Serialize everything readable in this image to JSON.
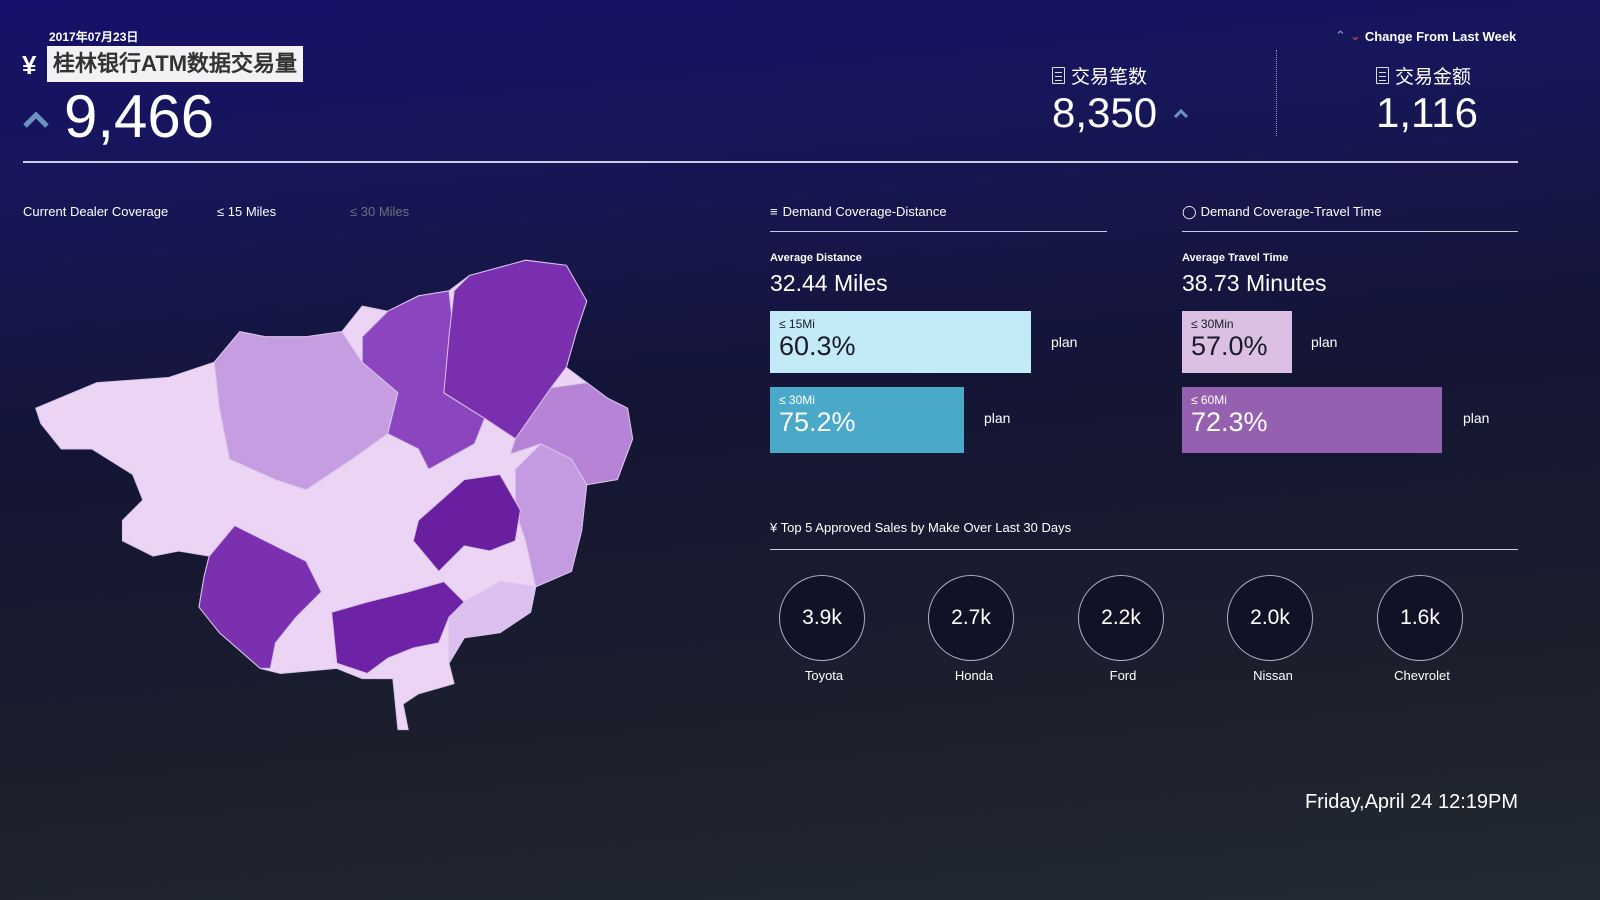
{
  "header": {
    "date": "2017年07月23日",
    "currency_icon": "¥",
    "title": "桂林银行ATM数据交易量",
    "main_value": "9,466",
    "main_trend": "up",
    "legend_label": "Change From Last Week",
    "kpis": [
      {
        "icon": "document-icon",
        "label": "交易笔数",
        "value": "8,350",
        "trend": "up"
      },
      {
        "icon": "document-icon",
        "label": "交易金额",
        "value": "1,116"
      }
    ]
  },
  "map": {
    "title": "Current Dealer Coverage",
    "filters": [
      {
        "label": "≤ 15 Miles",
        "active": true
      },
      {
        "label": "≤ 30 Miles",
        "active": false
      }
    ]
  },
  "distance": {
    "title": "Demand Coverage-Distance",
    "avg_label": "Average Distance",
    "avg_value": "32.44 Miles",
    "bars": [
      {
        "label": "≤ 15Mi",
        "value": "60.3%",
        "color": "#c3eaf7",
        "plan": "plan"
      },
      {
        "label": "≤ 30Mi",
        "value": "75.2%",
        "color": "#4aa8c9",
        "plan": "plan"
      }
    ]
  },
  "travel": {
    "title": "Demand Coverage-Travel Time",
    "avg_label": "Average Travel Time",
    "avg_value": "38.73 Minutes",
    "bars": [
      {
        "label": "≤ 30Min",
        "value": "57.0%",
        "color": "#dcc0e4",
        "plan": "plan"
      },
      {
        "label": "≤ 60Mi",
        "value": "72.3%",
        "color": "#9560b0",
        "plan": "plan"
      }
    ]
  },
  "top5": {
    "title": "¥ Top 5 Approved Sales by Make Over Last 30 Days",
    "items": [
      {
        "value": "3.9k",
        "make": "Toyota"
      },
      {
        "value": "2.7k",
        "make": "Honda"
      },
      {
        "value": "2.2k",
        "make": "Ford"
      },
      {
        "value": "2.0k",
        "make": "Nissan"
      },
      {
        "value": "1.6k",
        "make": "Chevrolet"
      }
    ]
  },
  "footer": {
    "datetime": "Friday,April 24 12:19PM"
  }
}
